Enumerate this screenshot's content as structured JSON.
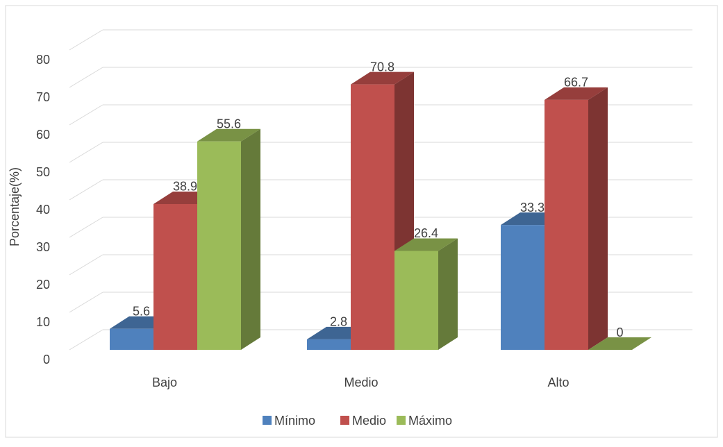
{
  "chart_data": {
    "type": "bar3d",
    "ylabel": "Porcentaje(%)",
    "categories": [
      "Bajo",
      "Medio",
      "Alto"
    ],
    "series": [
      {
        "name": "Mínimo",
        "color": "#4f81bd",
        "values": [
          5.6,
          2.8,
          33.3
        ]
      },
      {
        "name": "Medio",
        "color": "#c0504d",
        "values": [
          38.9,
          70.8,
          66.7
        ]
      },
      {
        "name": "Máximo",
        "color": "#9bbb59",
        "values": [
          55.6,
          26.4,
          0
        ]
      }
    ],
    "ylim": [
      0,
      80
    ],
    "yticks": [
      0,
      10,
      20,
      30,
      40,
      50,
      60,
      70,
      80
    ],
    "grid": true,
    "legend": "bottom"
  }
}
